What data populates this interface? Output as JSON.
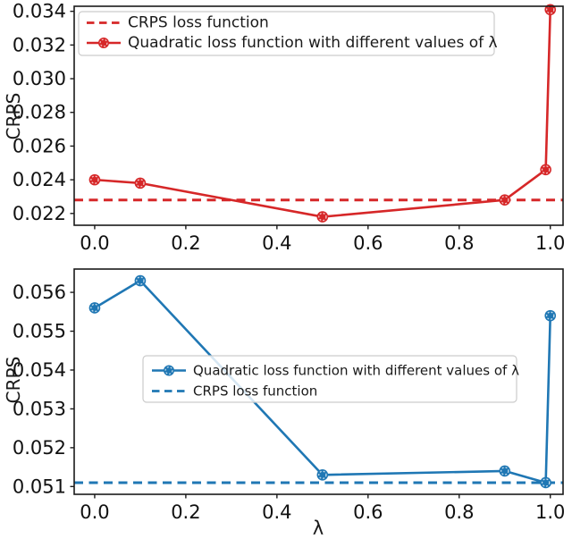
{
  "figure": {
    "background": "#ffffff",
    "spine_color": "#1a1a1a"
  },
  "chart_data": [
    {
      "type": "line",
      "title": "",
      "xlabel": "",
      "ylabel": "CRPS",
      "color": "#d62728",
      "x": [
        0.0,
        0.1,
        0.5,
        0.9,
        0.99,
        1.0
      ],
      "series": [
        {
          "name": "Quadratic loss function with different values of λ",
          "color": "#d62728",
          "values": [
            0.024,
            0.0238,
            0.0218,
            0.0228,
            0.0246,
            0.0341
          ]
        }
      ],
      "baseline": {
        "name": "CRPS loss function",
        "color": "#d62728",
        "style": "dashed",
        "value": 0.0228
      },
      "xlim": [
        -0.045,
        1.028
      ],
      "ylim": [
        0.0213,
        0.0343
      ],
      "xticks": [
        0.0,
        0.2,
        0.4,
        0.6,
        0.8,
        1.0
      ],
      "xtick_labels": [
        "0.0",
        "0.2",
        "0.4",
        "0.6",
        "0.8",
        "1.0"
      ],
      "yticks": [
        0.022,
        0.024,
        0.026,
        0.028,
        0.03,
        0.032,
        0.034
      ],
      "ytick_labels": [
        "0.022",
        "0.024",
        "0.026",
        "0.028",
        "0.030",
        "0.032",
        "0.034"
      ],
      "grid": false,
      "legend": {
        "position": "upper left",
        "entries": [
          {
            "style": "dashed",
            "label": "CRPS loss function"
          },
          {
            "style": "line-marker",
            "label": "Quadratic loss function with different values of λ"
          }
        ]
      }
    },
    {
      "type": "line",
      "title": "",
      "xlabel": "λ",
      "ylabel": "CRPS",
      "color": "#1f77b4",
      "x": [
        0.0,
        0.1,
        0.5,
        0.9,
        0.99,
        1.0
      ],
      "series": [
        {
          "name": "Quadratic loss function with different values of λ",
          "color": "#1f77b4",
          "values": [
            0.0556,
            0.0563,
            0.0513,
            0.0514,
            0.0511,
            0.0554
          ]
        }
      ],
      "baseline": {
        "name": "CRPS loss function",
        "color": "#1f77b4",
        "style": "dashed",
        "value": 0.0511
      },
      "xlim": [
        -0.045,
        1.028
      ],
      "ylim": [
        0.0508,
        0.0566
      ],
      "xticks": [
        0.0,
        0.2,
        0.4,
        0.6,
        0.8,
        1.0
      ],
      "xtick_labels": [
        "0.0",
        "0.2",
        "0.4",
        "0.6",
        "0.8",
        "1.0"
      ],
      "yticks": [
        0.051,
        0.052,
        0.053,
        0.054,
        0.055,
        0.056
      ],
      "ytick_labels": [
        "0.051",
        "0.052",
        "0.053",
        "0.054",
        "0.055",
        "0.056"
      ],
      "grid": false,
      "legend": {
        "position": "center",
        "entries": [
          {
            "style": "line-marker",
            "label": "Quadratic loss function with different values of λ"
          },
          {
            "style": "dashed",
            "label": "CRPS loss function"
          }
        ]
      }
    }
  ]
}
